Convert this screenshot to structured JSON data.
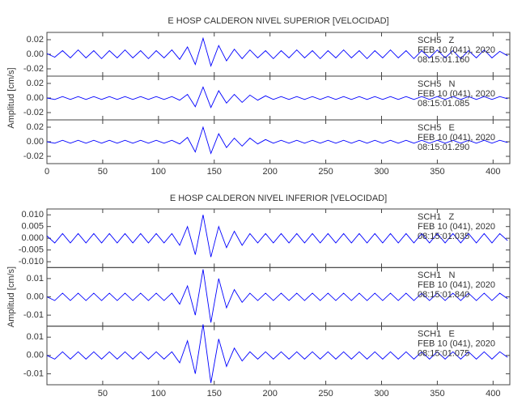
{
  "chart_data": [
    {
      "type": "line",
      "title": "E HOSP CALDERON NIVEL SUPERIOR [VELOCIDAD]",
      "ylabel": "Amplitud [cm/s]",
      "xlim": [
        0,
        415
      ],
      "xticks": [
        0,
        50,
        100,
        150,
        200,
        250,
        300,
        350,
        400
      ],
      "x": [
        0,
        7,
        14,
        21,
        28,
        35,
        42,
        49,
        56,
        63,
        70,
        77,
        84,
        91,
        98,
        105,
        112,
        119,
        126,
        133,
        140,
        147,
        154,
        161,
        168,
        175,
        182,
        189,
        196,
        203,
        210,
        217,
        224,
        231,
        238,
        245,
        252,
        259,
        266,
        273,
        280,
        287,
        294,
        301,
        308,
        315,
        322,
        329,
        336,
        343,
        350,
        357,
        364,
        371,
        378,
        385,
        392,
        399,
        406,
        413
      ],
      "panels": [
        {
          "station": "SCH5   Z",
          "date": "FEB 10 (041), 2020",
          "time": "08:15:01.160",
          "color": "#0000ff",
          "ylim": [
            -0.03,
            0.03
          ],
          "yticks": [
            0.02,
            {
              "value": 0,
              "label": "0.00"
            },
            -0.02
          ],
          "values": [
            0.001,
            -0.004,
            0.005,
            -0.005,
            0.006,
            -0.005,
            0.005,
            -0.006,
            0.005,
            -0.005,
            0.006,
            -0.005,
            0.005,
            -0.006,
            0.005,
            -0.005,
            0.006,
            -0.007,
            0.01,
            -0.014,
            0.022,
            -0.016,
            0.012,
            -0.009,
            0.007,
            -0.006,
            0.006,
            -0.005,
            0.005,
            -0.006,
            0.005,
            -0.005,
            0.006,
            -0.005,
            0.005,
            -0.006,
            0.005,
            -0.005,
            0.006,
            -0.005,
            0.005,
            -0.006,
            0.005,
            -0.005,
            0.006,
            -0.005,
            0.005,
            -0.006,
            0.005,
            -0.005,
            0.006,
            -0.005,
            0.005,
            -0.006,
            0.005,
            -0.005,
            0.006,
            -0.005,
            0.004,
            -0.002
          ]
        },
        {
          "station": "SCH5   N",
          "date": "FEB 10 (041), 2020",
          "time": "08:15:01.085",
          "color": "#0000ff",
          "ylim": [
            -0.03,
            0.03
          ],
          "yticks": [
            0.02,
            {
              "value": 0,
              "label": "0.00"
            },
            -0.02
          ],
          "values": [
            0,
            -0.002,
            0.002,
            -0.002,
            0.002,
            -0.002,
            0.002,
            -0.002,
            0.002,
            -0.002,
            0.002,
            -0.002,
            0.002,
            -0.002,
            0.002,
            -0.002,
            0.002,
            -0.003,
            0.005,
            -0.012,
            0.015,
            -0.013,
            0.01,
            -0.007,
            0.005,
            -0.006,
            0.004,
            -0.003,
            0.003,
            -0.002,
            0.002,
            -0.002,
            0.002,
            -0.002,
            0.002,
            -0.002,
            0.002,
            -0.002,
            0.002,
            -0.002,
            0.002,
            -0.002,
            0.002,
            -0.002,
            0.002,
            -0.002,
            0.002,
            -0.002,
            0.002,
            -0.002,
            0.002,
            -0.002,
            0.002,
            -0.002,
            0.002,
            -0.002,
            0.002,
            -0.002,
            0.002,
            -0.001
          ]
        },
        {
          "station": "SCH5   E",
          "date": "FEB 10 (041), 2020",
          "time": "08:15:01.290",
          "color": "#0000ff",
          "ylim": [
            -0.03,
            0.03
          ],
          "yticks": [
            0.02,
            {
              "value": 0,
              "label": "0.00"
            },
            -0.02
          ],
          "values": [
            0,
            -0.002,
            0.002,
            -0.002,
            0.002,
            -0.002,
            0.002,
            -0.002,
            0.002,
            -0.002,
            0.002,
            -0.002,
            0.002,
            -0.002,
            0.002,
            -0.002,
            0.002,
            -0.003,
            0.006,
            -0.014,
            0.02,
            -0.016,
            0.011,
            -0.008,
            0.005,
            -0.006,
            0.005,
            -0.003,
            0.003,
            -0.002,
            0.002,
            -0.002,
            0.002,
            -0.002,
            0.002,
            -0.002,
            0.002,
            -0.002,
            0.002,
            -0.002,
            0.002,
            -0.002,
            0.002,
            -0.002,
            0.002,
            -0.002,
            0.002,
            -0.002,
            0.002,
            -0.002,
            0.002,
            -0.002,
            0.002,
            -0.002,
            0.002,
            -0.002,
            0.002,
            -0.002,
            0.002,
            -0.001
          ]
        }
      ]
    },
    {
      "type": "line",
      "title": "E HOSP CALDERON NIVEL INFERIOR [VELOCIDAD]",
      "ylabel": "Amplitud [cm/s]",
      "xlim": [
        0,
        415
      ],
      "xticks": [
        50,
        100,
        150,
        200,
        250,
        300,
        350,
        400
      ],
      "x": [
        0,
        7,
        14,
        21,
        28,
        35,
        42,
        49,
        56,
        63,
        70,
        77,
        84,
        91,
        98,
        105,
        112,
        119,
        126,
        133,
        140,
        147,
        154,
        161,
        168,
        175,
        182,
        189,
        196,
        203,
        210,
        217,
        224,
        231,
        238,
        245,
        252,
        259,
        266,
        273,
        280,
        287,
        294,
        301,
        308,
        315,
        322,
        329,
        336,
        343,
        350,
        357,
        364,
        371,
        378,
        385,
        392,
        399,
        406,
        413
      ],
      "panels": [
        {
          "station": "SCH1   Z",
          "date": "FEB 10 (041), 2020",
          "time": "08:15:01.035",
          "color": "#0000ff",
          "ylim": [
            -0.0125,
            0.0125
          ],
          "yticks": [
            {
              "value": 0.01,
              "label": "0.010"
            },
            {
              "value": 0.005,
              "label": "0.005"
            },
            {
              "value": 0,
              "label": "0.000"
            },
            {
              "value": -0.005,
              "label": "-0.005"
            },
            {
              "value": -0.01,
              "label": "-0.010"
            }
          ],
          "values": [
            0.001,
            -0.002,
            0.002,
            -0.002,
            0.002,
            -0.002,
            0.002,
            -0.002,
            0.002,
            -0.002,
            0.002,
            -0.002,
            0.002,
            -0.002,
            0.002,
            -0.002,
            0.002,
            -0.003,
            0.005,
            -0.007,
            0.01,
            -0.008,
            0.005,
            -0.004,
            0.003,
            -0.003,
            0.002,
            -0.002,
            0.002,
            -0.002,
            0.002,
            -0.002,
            0.002,
            -0.002,
            0.002,
            -0.002,
            0.002,
            -0.002,
            0.002,
            -0.002,
            0.002,
            -0.002,
            0.002,
            -0.002,
            0.002,
            -0.002,
            0.002,
            -0.002,
            0.002,
            -0.002,
            0.002,
            -0.002,
            0.002,
            -0.002,
            0.002,
            -0.002,
            0.002,
            -0.002,
            0.002,
            -0.001
          ]
        },
        {
          "station": "SCH1   N",
          "date": "FEB 10 (041), 2020",
          "time": "08:15:01.840",
          "color": "#0000ff",
          "ylim": [
            -0.016,
            0.016
          ],
          "yticks": [
            0.01,
            {
              "value": 0,
              "label": "0.00"
            },
            -0.01
          ],
          "values": [
            0,
            -0.002,
            0.002,
            -0.002,
            0.002,
            -0.002,
            0.002,
            -0.002,
            0.002,
            -0.002,
            0.002,
            -0.002,
            0.002,
            -0.002,
            0.002,
            -0.002,
            0.002,
            -0.004,
            0.006,
            -0.01,
            0.015,
            -0.014,
            0.01,
            -0.006,
            0.004,
            -0.003,
            0.002,
            -0.002,
            0.002,
            -0.002,
            0.002,
            -0.002,
            0.002,
            -0.002,
            0.002,
            -0.002,
            0.002,
            -0.002,
            0.002,
            -0.002,
            0.002,
            -0.002,
            0.002,
            -0.002,
            0.002,
            -0.002,
            0.002,
            -0.002,
            0.002,
            -0.002,
            0.002,
            -0.002,
            0.002,
            -0.002,
            0.002,
            -0.002,
            0.002,
            -0.002,
            0.002,
            -0.001
          ]
        },
        {
          "station": "SCH1   E",
          "date": "FEB 10 (041), 2020",
          "time": "08:15:01.075",
          "color": "#0000ff",
          "ylim": [
            -0.016,
            0.016
          ],
          "yticks": [
            0.01,
            {
              "value": 0,
              "label": "0.00"
            },
            -0.01
          ],
          "values": [
            0,
            -0.002,
            0.002,
            -0.002,
            0.002,
            -0.002,
            0.002,
            -0.002,
            0.002,
            -0.002,
            0.002,
            -0.002,
            0.002,
            -0.002,
            0.002,
            -0.002,
            0.002,
            -0.004,
            0.008,
            -0.01,
            0.017,
            -0.015,
            0.009,
            -0.006,
            0.004,
            -0.003,
            0.002,
            -0.002,
            0.002,
            -0.002,
            0.002,
            -0.002,
            0.002,
            -0.002,
            0.002,
            -0.002,
            0.002,
            -0.002,
            0.002,
            -0.002,
            0.002,
            -0.002,
            0.002,
            -0.002,
            0.002,
            -0.002,
            0.002,
            -0.002,
            0.002,
            -0.002,
            0.002,
            -0.002,
            0.002,
            -0.002,
            0.002,
            -0.002,
            0.002,
            -0.002,
            0.002,
            -0.001
          ]
        }
      ]
    }
  ]
}
